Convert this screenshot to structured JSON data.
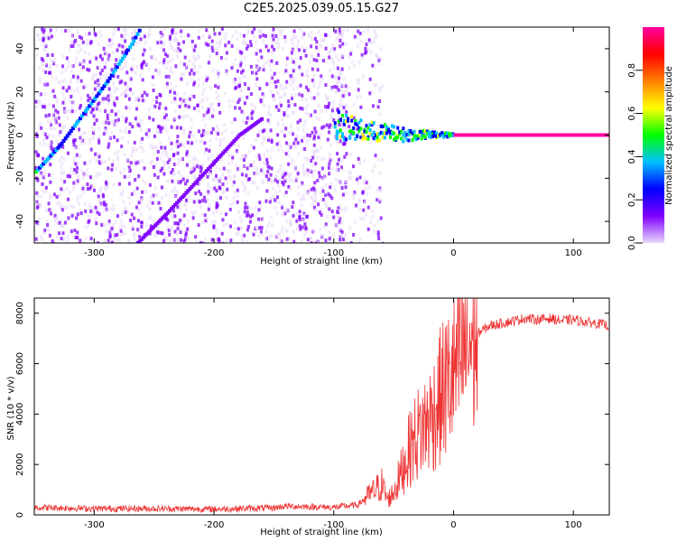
{
  "title": "C2E5.2025.039.05.15.G27",
  "chart_data": [
    {
      "type": "heatmap",
      "xlabel": "Height of straight line (km)",
      "ylabel": "Frequency (Hz)",
      "xlim": [
        -350,
        130
      ],
      "ylim": [
        -50,
        50
      ],
      "xticks": [
        -300,
        -200,
        -100,
        0,
        100
      ],
      "yticks": [
        -40,
        -20,
        0,
        20,
        40
      ],
      "colorbar": {
        "label": "Normalized spectral amplitude",
        "range": [
          0.0,
          1.0
        ],
        "ticks": [
          0.0,
          0.2,
          0.4,
          0.6,
          0.8
        ],
        "colors": [
          "#e8d8f8",
          "#8000ff",
          "#0000ff",
          "#00c0ff",
          "#00ff00",
          "#ffff00",
          "#ff8000",
          "#ff0000",
          "#ff00a0"
        ]
      },
      "features": [
        {
          "name": "rising_line_1",
          "points": [
            [
              -350,
              -17
            ],
            [
              -330,
              -5
            ],
            [
              -310,
              10
            ],
            [
              -290,
              25
            ],
            [
              -270,
              42
            ],
            [
              -262,
              50
            ]
          ],
          "amplitude": 0.35
        },
        {
          "name": "rising_line_2",
          "points": [
            [
              -265,
              -50
            ],
            [
              -240,
              -36
            ],
            [
              -220,
              -24
            ],
            [
              -200,
              -12
            ],
            [
              -180,
              0
            ],
            [
              -160,
              8
            ]
          ],
          "amplitude": 0.12
        },
        {
          "name": "converging_cluster",
          "points": [
            [
              -100,
              5
            ],
            [
              -80,
              2
            ],
            [
              -60,
              1
            ],
            [
              -40,
              0
            ],
            [
              -20,
              0
            ],
            [
              0,
              0
            ]
          ],
          "amplitude": 0.5
        },
        {
          "name": "steady_line",
          "points": [
            [
              0,
              0
            ],
            [
              130,
              0
            ]
          ],
          "amplitude": 0.95
        }
      ]
    },
    {
      "type": "line",
      "xlabel": "Height of straight line (km)",
      "ylabel": "SNR (10 * v/v)",
      "xlim": [
        -350,
        130
      ],
      "ylim": [
        0,
        8600
      ],
      "xticks": [
        -300,
        -200,
        -100,
        0,
        100
      ],
      "yticks": [
        0,
        2000,
        4000,
        6000,
        8000
      ],
      "series": [
        {
          "color": "#ee3333",
          "x": [
            -350,
            -300,
            -250,
            -200,
            -150,
            -140,
            -100,
            -80,
            -70,
            -60,
            -55,
            -50,
            -45,
            -40,
            -35,
            -30,
            -25,
            -20,
            -15,
            -10,
            -5,
            0,
            5,
            10,
            20,
            30,
            40,
            50,
            60,
            70,
            80,
            90,
            100,
            110,
            120,
            130
          ],
          "y": [
            300,
            250,
            250,
            230,
            280,
            350,
            300,
            400,
            800,
            1200,
            600,
            900,
            1500,
            2200,
            2800,
            3200,
            3500,
            3800,
            4200,
            4800,
            5200,
            5500,
            6000,
            6600,
            7200,
            7500,
            7600,
            7700,
            7800,
            7750,
            7800,
            7700,
            7750,
            7650,
            7600,
            7500
          ]
        }
      ]
    }
  ]
}
